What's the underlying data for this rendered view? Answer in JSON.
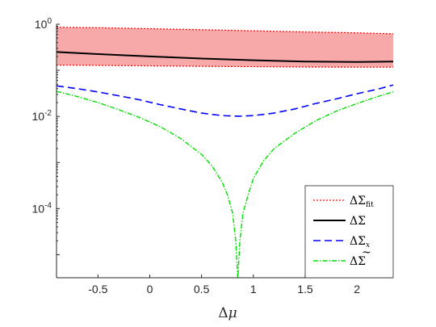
{
  "chart_data": {
    "type": "line",
    "xlabel_parts": [
      "Δ",
      "μ"
    ],
    "xlim": [
      -0.9,
      2.35
    ],
    "ylim": [
      3.16e-06,
      1
    ],
    "yscale": "log",
    "x_ticks": [
      -0.5,
      0,
      0.5,
      1,
      1.5,
      2
    ],
    "x_tick_labels": [
      "-0.5",
      "0",
      "0.5",
      "1",
      "1.5",
      "2"
    ],
    "y_ticks": [
      0.0001,
      0.01,
      1
    ],
    "y_tick_labels": [
      {
        "base": "10",
        "exp": "-4"
      },
      {
        "base": "10",
        "exp": "-2"
      },
      {
        "base": "10",
        "exp": "0"
      }
    ],
    "grid": false,
    "legend_placement": "bottom-right",
    "band": {
      "fill": "#f7a8a8",
      "x": [
        -0.9,
        -0.5,
        0,
        0.5,
        1,
        1.5,
        2,
        2.35
      ],
      "upper": [
        0.86,
        0.84,
        0.8,
        0.76,
        0.72,
        0.68,
        0.65,
        0.62
      ],
      "lower": [
        0.13,
        0.128,
        0.125,
        0.122,
        0.12,
        0.118,
        0.117,
        0.117
      ]
    },
    "series": [
      {
        "legend": {
          "symbol": "ΔΣ",
          "sub": "fit",
          "accent": ""
        },
        "color": "#ff0000",
        "dash": "2,2",
        "width": 1.2,
        "style": "band-edges"
      },
      {
        "legend": {
          "symbol": "ΔΣ",
          "sub": "",
          "accent": ""
        },
        "color": "#000000",
        "dash": "",
        "width": 2,
        "x": [
          -0.9,
          -0.5,
          0,
          0.5,
          1,
          1.5,
          2,
          2.35
        ],
        "y": [
          0.25,
          0.225,
          0.2,
          0.18,
          0.165,
          0.155,
          0.152,
          0.155
        ]
      },
      {
        "legend": {
          "symbol": "ΔΣ",
          "sub": "x",
          "accent": ""
        },
        "color": "#0000ff",
        "dash": "9,5",
        "width": 1.6,
        "x": [
          -0.9,
          -0.7,
          -0.5,
          -0.3,
          -0.1,
          0.1,
          0.3,
          0.5,
          0.7,
          0.85,
          1.0,
          1.2,
          1.4,
          1.6,
          1.8,
          2.0,
          2.2,
          2.35
        ],
        "y": [
          0.046,
          0.04,
          0.034,
          0.028,
          0.023,
          0.018,
          0.0145,
          0.0118,
          0.0104,
          0.0101,
          0.0104,
          0.0118,
          0.0145,
          0.019,
          0.024,
          0.031,
          0.039,
          0.048
        ]
      },
      {
        "legend": {
          "symbol": "ΔΣ",
          "sub": "",
          "accent": "~"
        },
        "color": "#00dd00",
        "dash": "6,2,1.5,2",
        "width": 1.4,
        "x": [
          -0.9,
          -0.7,
          -0.5,
          -0.3,
          -0.1,
          0.1,
          0.3,
          0.5,
          0.6,
          0.7,
          0.75,
          0.8,
          0.83,
          0.85,
          0.87,
          0.9,
          0.95,
          1.0,
          1.1,
          1.2,
          1.4,
          1.6,
          1.8,
          2.0,
          2.2,
          2.35
        ],
        "y": [
          0.035,
          0.027,
          0.02,
          0.014,
          0.0095,
          0.006,
          0.0033,
          0.0015,
          0.00085,
          0.00037,
          0.0002,
          8e-05,
          2e-05,
          3e-06,
          2e-05,
          8e-05,
          0.0002,
          0.00045,
          0.0011,
          0.002,
          0.0043,
          0.008,
          0.013,
          0.019,
          0.027,
          0.034
        ]
      }
    ]
  }
}
